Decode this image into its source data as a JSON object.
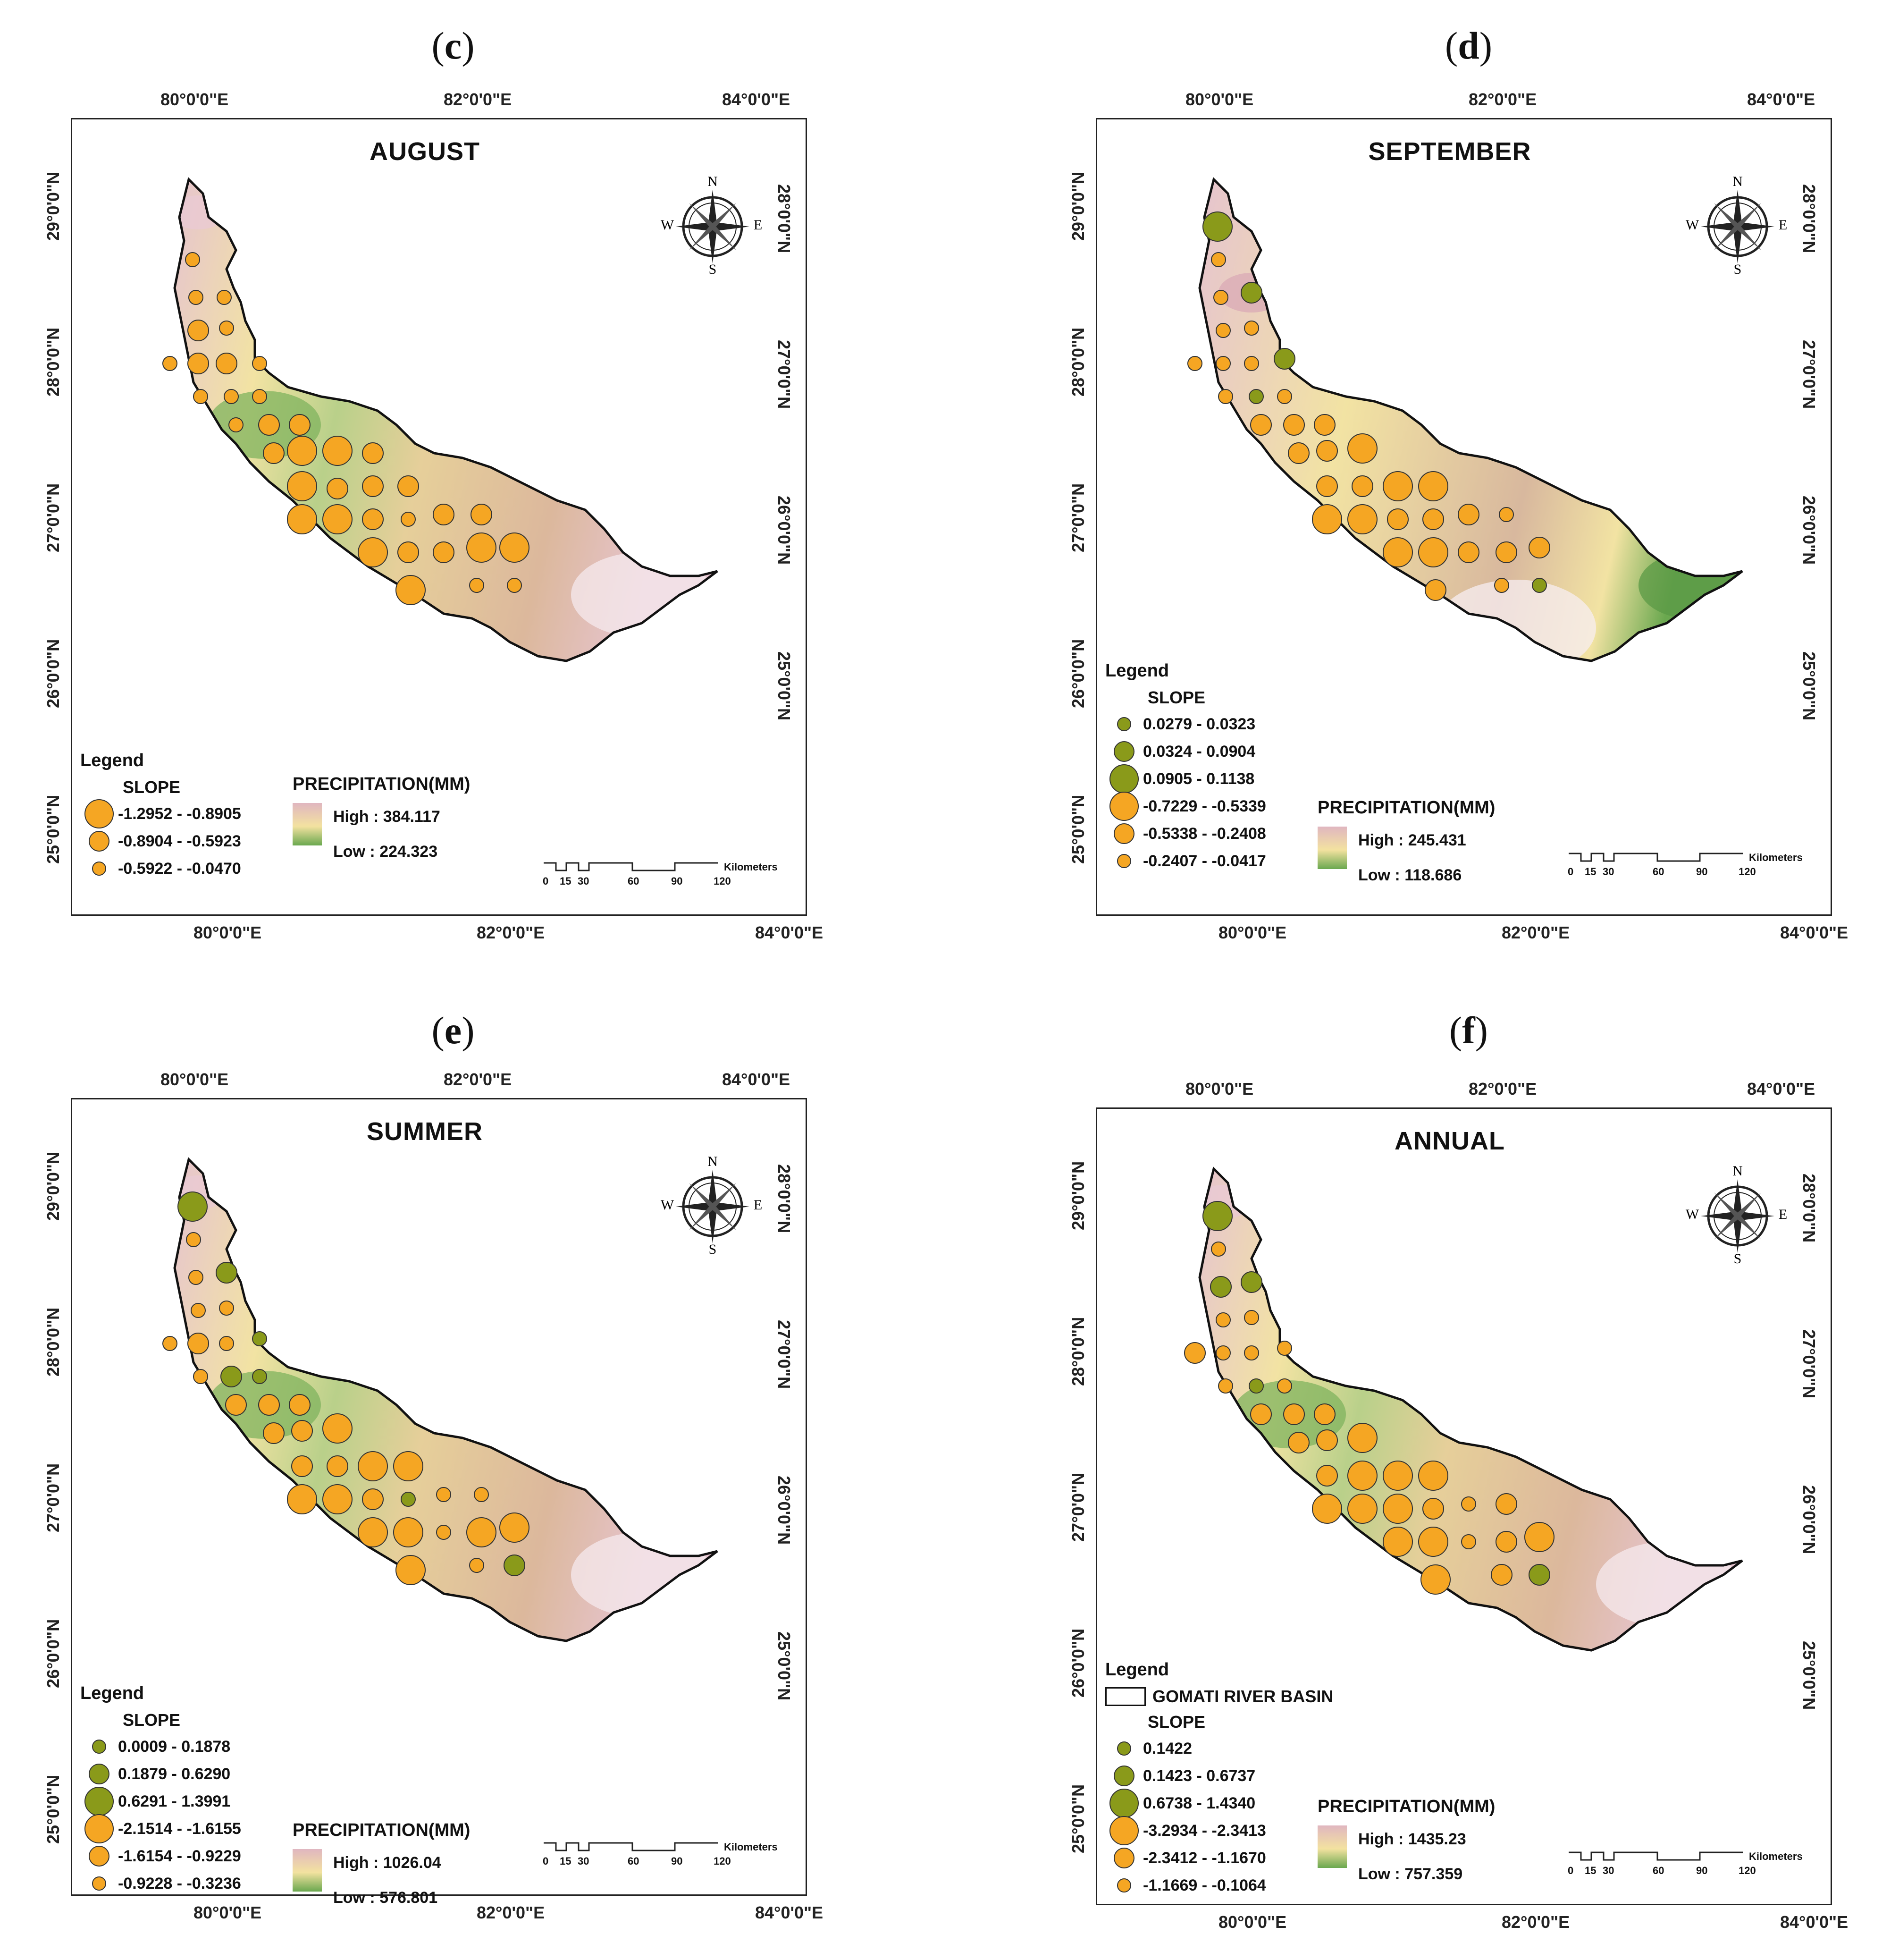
{
  "panels": [
    {
      "label_open": "(",
      "label_letter": "c",
      "label_close": ")",
      "title": "AUGUST",
      "lon_labels": [
        "80°0'0\"E",
        "82°0'0\"E",
        "84°0'0\"E"
      ],
      "lat_labels_left": [
        "29°0'0\"N",
        "28°0'0\"N",
        "27°0'0\"N",
        "26°0'0\"N",
        "25°0'0\"N"
      ],
      "lat_labels_right": [
        "28°0'0\"N",
        "27°0'0\"N",
        "26°0'0\"N",
        "25°0'0\"N"
      ],
      "legend_title": "Legend",
      "slope_title": "SLOPE",
      "slope_classes": [
        {
          "label": "-1.2952 - -0.8905",
          "size": "large",
          "color": "orange"
        },
        {
          "label": "-0.8904 - -0.5923",
          "size": "medium",
          "color": "orange"
        },
        {
          "label": "-0.5922 - -0.0470",
          "size": "small",
          "color": "orange"
        }
      ],
      "precip_title": "PRECIPITATION(MM)",
      "precip_high": "High : 384.117",
      "precip_low": "Low : 224.323",
      "green_zone": "west",
      "pink_zone": "east"
    },
    {
      "label_open": "(",
      "label_letter": "d",
      "label_close": ")",
      "title": "SEPTEMBER",
      "lon_labels": [
        "80°0'0\"E",
        "82°0'0\"E",
        "84°0'0\"E"
      ],
      "lat_labels_left": [
        "29°0'0\"N",
        "28°0'0\"N",
        "27°0'0\"N",
        "26°0'0\"N",
        "25°0'0\"N"
      ],
      "lat_labels_right": [
        "28°0'0\"N",
        "27°0'0\"N",
        "26°0'0\"N",
        "25°0'0\"N"
      ],
      "legend_title": "Legend",
      "slope_title": "SLOPE",
      "slope_classes": [
        {
          "label": "0.0279 - 0.0323",
          "size": "small",
          "color": "green"
        },
        {
          "label": "0.0324 - 0.0904",
          "size": "medium",
          "color": "green"
        },
        {
          "label": "0.0905 - 0.1138",
          "size": "large",
          "color": "green"
        },
        {
          "label": "-0.7229 - -0.5339",
          "size": "large",
          "color": "orange"
        },
        {
          "label": "-0.5338 - -0.2408",
          "size": "medium",
          "color": "orange"
        },
        {
          "label": "-0.2407 - -0.0417",
          "size": "small",
          "color": "orange"
        }
      ],
      "precip_title": "PRECIPITATION(MM)",
      "precip_high": "High : 245.431",
      "precip_low": "Low : 118.686",
      "green_zone": "east",
      "pink_zone": "north"
    },
    {
      "label_open": "(",
      "label_letter": "e",
      "label_close": ")",
      "title": "SUMMER",
      "lon_labels": [
        "80°0'0\"E",
        "82°0'0\"E",
        "84°0'0\"E"
      ],
      "lat_labels_left": [
        "29°0'0\"N",
        "28°0'0\"N",
        "27°0'0\"N",
        "26°0'0\"N",
        "25°0'0\"N"
      ],
      "lat_labels_right": [
        "28°0'0\"N",
        "27°0'0\"N",
        "26°0'0\"N",
        "25°0'0\"N"
      ],
      "legend_title": "Legend",
      "slope_title": "SLOPE",
      "slope_classes": [
        {
          "label": "0.0009 - 0.1878",
          "size": "small",
          "color": "green"
        },
        {
          "label": "0.1879 - 0.6290",
          "size": "medium",
          "color": "green"
        },
        {
          "label": "0.6291 - 1.3991",
          "size": "large",
          "color": "green"
        },
        {
          "label": "-2.1514 - -1.6155",
          "size": "large",
          "color": "orange"
        },
        {
          "label": "-1.6154 - -0.9229",
          "size": "medium",
          "color": "orange"
        },
        {
          "label": "-0.9228 - -0.3236",
          "size": "small",
          "color": "orange"
        }
      ],
      "precip_title": "PRECIPITATION(MM)",
      "precip_high": "High : 1026.04",
      "precip_low": "Low : 576.801",
      "green_zone": "west",
      "pink_zone": "east"
    },
    {
      "label_open": "(",
      "label_letter": "f",
      "label_close": ")",
      "title": "ANNUAL",
      "lon_labels": [
        "80°0'0\"E",
        "82°0'0\"E",
        "84°0'0\"E"
      ],
      "lat_labels_left": [
        "29°0'0\"N",
        "28°0'0\"N",
        "27°0'0\"N",
        "26°0'0\"N",
        "25°0'0\"N"
      ],
      "lat_labels_right": [
        "28°0'0\"N",
        "27°0'0\"N",
        "26°0'0\"N",
        "25°0'0\"N"
      ],
      "legend_title": "Legend",
      "basin_label": "GOMATI RIVER BASIN",
      "slope_title": "SLOPE",
      "slope_classes": [
        {
          "label": "0.1422",
          "size": "small",
          "color": "green"
        },
        {
          "label": "0.1423 - 0.6737",
          "size": "medium",
          "color": "green"
        },
        {
          "label": "0.6738 - 1.4340",
          "size": "large",
          "color": "green"
        },
        {
          "label": "-3.2934 - -2.3413",
          "size": "large",
          "color": "orange"
        },
        {
          "label": "-2.3412 - -1.1670",
          "size": "medium",
          "color": "orange"
        },
        {
          "label": "-1.1669 - -0.1064",
          "size": "small",
          "color": "orange"
        }
      ],
      "precip_title": "PRECIPITATION(MM)",
      "precip_high": "High : 1435.23",
      "precip_low": "Low : 757.359",
      "green_zone": "west",
      "pink_zone": "east"
    }
  ],
  "compass": {
    "n": "N",
    "s": "S",
    "e": "E",
    "w": "W"
  },
  "scale_bar": {
    "ticks": [
      "0",
      "15",
      "30",
      "60",
      "90",
      "120"
    ],
    "unit": "Kilometers"
  },
  "colors": {
    "orange": "#f5a623",
    "green": "#8a9a1a",
    "pink": "#e6c4cf",
    "yellow": "#f2e3a3",
    "green_low": "#6aa84f"
  }
}
